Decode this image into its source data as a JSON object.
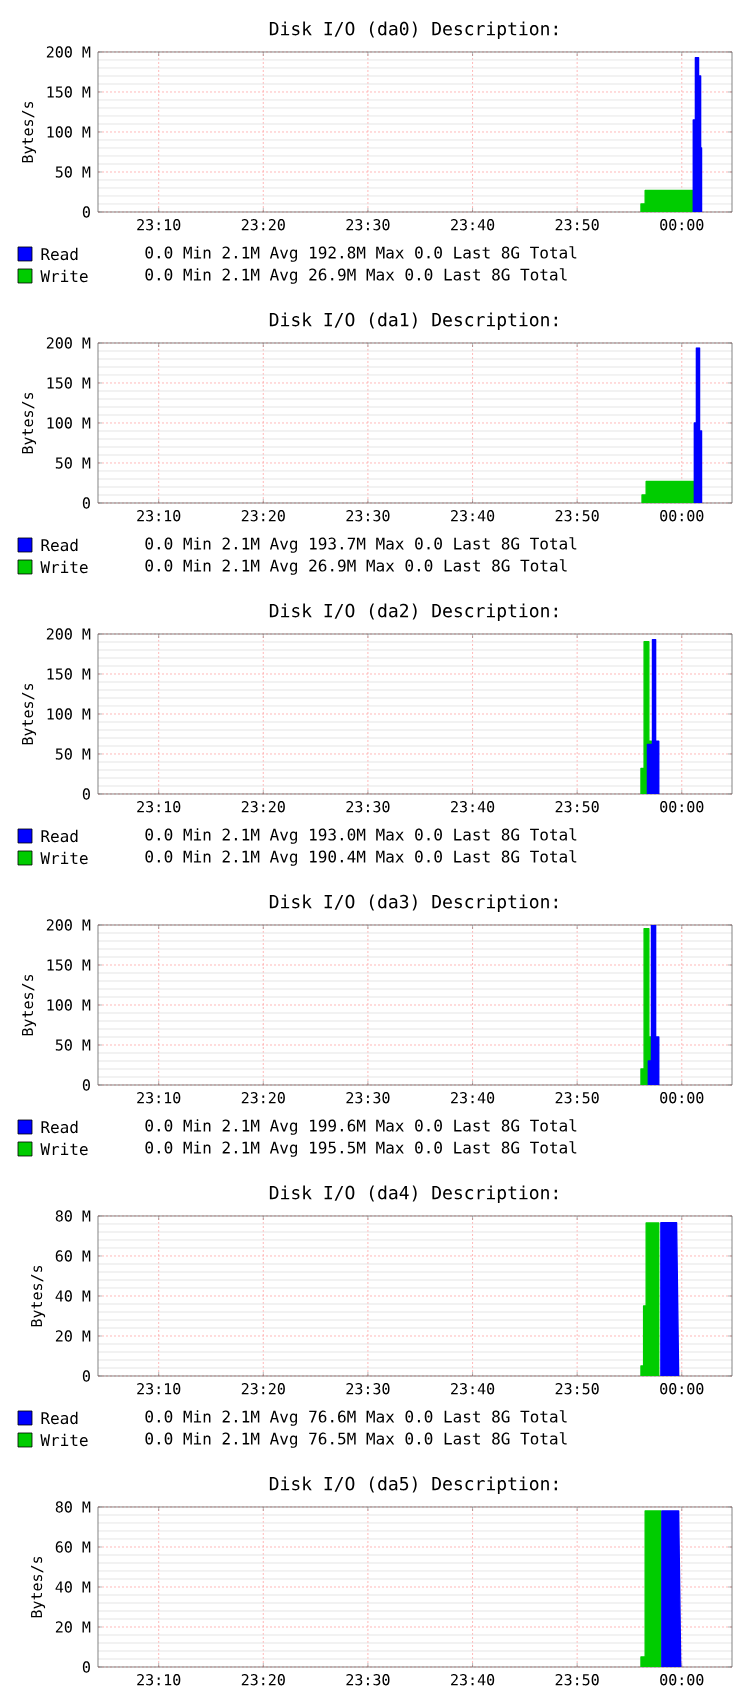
{
  "chart_data": [
    {
      "type": "area",
      "title": "Disk I/O (da0) Description:",
      "ylabel": "Bytes/s",
      "xlim": [
        23.07,
        24.08
      ],
      "ylim": [
        0,
        200
      ],
      "xticks": [
        {
          "value": 23.1667,
          "label": "23:10"
        },
        {
          "value": 23.3333,
          "label": "23:20"
        },
        {
          "value": 23.5,
          "label": "23:30"
        },
        {
          "value": 23.6667,
          "label": "23:40"
        },
        {
          "value": 23.8333,
          "label": "23:50"
        },
        {
          "value": 24.0,
          "label": "00:00"
        }
      ],
      "yticks": [
        0,
        {
          "value": 50,
          "label": "50 M"
        },
        {
          "value": 100,
          "label": "100 M"
        },
        {
          "value": 150,
          "label": "150 M"
        },
        {
          "value": 200,
          "label": "200 M"
        }
      ],
      "grid": true,
      "legend": "bottom",
      "annotations": [
        "0.0 Min 2.1M Avg 192.8M Max 0.0 Last 8G Total",
        "0.0 Min 2.1M Avg 26.9M Max 0.0 Last 8G Total"
      ],
      "series": [
        {
          "name": "Read",
          "color": "#0000ff",
          "x": [
            24.0183,
            24.0183,
            24.0217,
            24.0217,
            24.0267,
            24.0267,
            24.03,
            24.03,
            24.0317,
            24.0317
          ],
          "values": [
            0,
            115,
            115,
            192.8,
            192.8,
            170,
            170,
            80,
            80,
            0
          ]
        },
        {
          "name": "Write",
          "color": "#00cc00",
          "x": [
            23.935,
            23.935,
            23.9417,
            23.9417,
            24.0183,
            24.0183
          ],
          "values": [
            0,
            10,
            10,
            26.9,
            26.9,
            0
          ]
        }
      ]
    },
    {
      "type": "area",
      "title": "Disk I/O (da1) Description:",
      "ylabel": "Bytes/s",
      "xlim": [
        23.07,
        24.08
      ],
      "ylim": [
        0,
        200
      ],
      "xticks": [
        {
          "value": 23.1667,
          "label": "23:10"
        },
        {
          "value": 23.3333,
          "label": "23:20"
        },
        {
          "value": 23.5,
          "label": "23:30"
        },
        {
          "value": 23.6667,
          "label": "23:40"
        },
        {
          "value": 23.8333,
          "label": "23:50"
        },
        {
          "value": 24.0,
          "label": "00:00"
        }
      ],
      "yticks": [
        0,
        {
          "value": 50,
          "label": "50 M"
        },
        {
          "value": 100,
          "label": "100 M"
        },
        {
          "value": 150,
          "label": "150 M"
        },
        {
          "value": 200,
          "label": "200 M"
        }
      ],
      "grid": true,
      "legend": "bottom",
      "annotations": [
        "0.0 Min 2.1M Avg 193.7M Max 0.0 Last 8G Total",
        "0.0 Min 2.1M Avg 26.9M Max 0.0 Last 8G Total"
      ],
      "series": [
        {
          "name": "Read",
          "color": "#0000ff",
          "x": [
            24.02,
            24.02,
            24.0233,
            24.0233,
            24.0283,
            24.0283,
            24.0317,
            24.0317
          ],
          "values": [
            0,
            100,
            100,
            193.7,
            193.7,
            90,
            90,
            0
          ]
        },
        {
          "name": "Write",
          "color": "#00cc00",
          "x": [
            23.9367,
            23.9367,
            23.9433,
            23.9433,
            24.02,
            24.02
          ],
          "values": [
            0,
            10,
            10,
            26.9,
            26.9,
            0
          ]
        }
      ]
    },
    {
      "type": "area",
      "title": "Disk I/O (da2) Description:",
      "ylabel": "Bytes/s",
      "xlim": [
        23.07,
        24.08
      ],
      "ylim": [
        0,
        200
      ],
      "xticks": [
        {
          "value": 23.1667,
          "label": "23:10"
        },
        {
          "value": 23.3333,
          "label": "23:20"
        },
        {
          "value": 23.5,
          "label": "23:30"
        },
        {
          "value": 23.6667,
          "label": "23:40"
        },
        {
          "value": 23.8333,
          "label": "23:50"
        },
        {
          "value": 24.0,
          "label": "00:00"
        }
      ],
      "yticks": [
        0,
        {
          "value": 50,
          "label": "50 M"
        },
        {
          "value": 100,
          "label": "100 M"
        },
        {
          "value": 150,
          "label": "150 M"
        },
        {
          "value": 200,
          "label": "200 M"
        }
      ],
      "grid": true,
      "legend": "bottom",
      "annotations": [
        "0.0 Min 2.1M Avg 193.0M Max 0.0 Last 8G Total",
        "0.0 Min 2.1M Avg 190.4M Max 0.0 Last 8G Total"
      ],
      "series": [
        {
          "name": "Read",
          "color": "#0000ff",
          "x": [
            23.945,
            23.945,
            23.9533,
            23.9533,
            23.9583,
            23.9583,
            23.9633,
            23.9633
          ],
          "values": [
            0,
            62,
            62,
            193.0,
            193.0,
            66,
            66,
            0
          ]
        },
        {
          "name": "Write",
          "color": "#00cc00",
          "x": [
            23.935,
            23.935,
            23.94,
            23.94,
            23.9475,
            23.9475,
            23.9517,
            23.9517
          ],
          "values": [
            0,
            32,
            32,
            190.4,
            190.4,
            66,
            66,
            0
          ]
        }
      ]
    },
    {
      "type": "area",
      "title": "Disk I/O (da3) Description:",
      "ylabel": "Bytes/s",
      "xlim": [
        23.07,
        24.08
      ],
      "ylim": [
        0,
        200
      ],
      "xticks": [
        {
          "value": 23.1667,
          "label": "23:10"
        },
        {
          "value": 23.3333,
          "label": "23:20"
        },
        {
          "value": 23.5,
          "label": "23:30"
        },
        {
          "value": 23.6667,
          "label": "23:40"
        },
        {
          "value": 23.8333,
          "label": "23:50"
        },
        {
          "value": 24.0,
          "label": "00:00"
        }
      ],
      "yticks": [
        0,
        {
          "value": 50,
          "label": "50 M"
        },
        {
          "value": 100,
          "label": "100 M"
        },
        {
          "value": 150,
          "label": "150 M"
        },
        {
          "value": 200,
          "label": "200 M"
        }
      ],
      "grid": true,
      "legend": "bottom",
      "annotations": [
        "0.0 Min 2.1M Avg 199.6M Max 0.0 Last 8G Total",
        "0.0 Min 2.1M Avg 195.5M Max 0.0 Last 8G Total"
      ],
      "series": [
        {
          "name": "Read",
          "color": "#0000ff",
          "x": [
            23.9467,
            23.9467,
            23.9517,
            23.9517,
            23.9583,
            23.9583,
            23.9633,
            23.9633
          ],
          "values": [
            0,
            30,
            30,
            199.6,
            199.6,
            60,
            60,
            0
          ]
        },
        {
          "name": "Write",
          "color": "#00cc00",
          "x": [
            23.935,
            23.935,
            23.94,
            23.94,
            23.9475,
            23.9475,
            23.9517,
            23.9517
          ],
          "values": [
            0,
            20,
            20,
            195.5,
            195.5,
            60,
            60,
            0
          ]
        }
      ]
    },
    {
      "type": "area",
      "title": "Disk I/O (da4) Description:",
      "ylabel": "Bytes/s",
      "xlim": [
        23.07,
        24.08
      ],
      "ylim": [
        0,
        80
      ],
      "xticks": [
        {
          "value": 23.1667,
          "label": "23:10"
        },
        {
          "value": 23.3333,
          "label": "23:20"
        },
        {
          "value": 23.5,
          "label": "23:30"
        },
        {
          "value": 23.6667,
          "label": "23:40"
        },
        {
          "value": 23.8333,
          "label": "23:50"
        },
        {
          "value": 24.0,
          "label": "00:00"
        }
      ],
      "yticks": [
        0,
        {
          "value": 20,
          "label": "20 M"
        },
        {
          "value": 40,
          "label": "40 M"
        },
        {
          "value": 60,
          "label": "60 M"
        },
        {
          "value": 80,
          "label": "80 M"
        }
      ],
      "grid": true,
      "legend": "bottom",
      "annotations": [
        "0.0 Min 2.1M Avg 76.6M Max 0.0 Last 8G Total",
        "0.0 Min 2.1M Avg 76.5M Max 0.0 Last 8G Total"
      ],
      "series": [
        {
          "name": "Read",
          "color": "#0000ff",
          "x": [
            23.9667,
            23.9667,
            23.9917,
            23.995
          ],
          "values": [
            0,
            76.6,
            76.6,
            0
          ]
        },
        {
          "name": "Write",
          "color": "#00cc00",
          "x": [
            23.935,
            23.935,
            23.9392,
            23.9392,
            23.9433,
            23.9433,
            23.9633,
            23.9633
          ],
          "values": [
            0,
            5,
            5,
            35,
            35,
            76.5,
            76.5,
            0
          ]
        }
      ]
    },
    {
      "type": "area",
      "title": "Disk I/O (da5) Description:",
      "ylabel": "Bytes/s",
      "xlim": [
        23.07,
        24.08
      ],
      "ylim": [
        0,
        80
      ],
      "xticks": [
        {
          "value": 23.1667,
          "label": "23:10"
        },
        {
          "value": 23.3333,
          "label": "23:20"
        },
        {
          "value": 23.5,
          "label": "23:30"
        },
        {
          "value": 23.6667,
          "label": "23:40"
        },
        {
          "value": 23.8333,
          "label": "23:50"
        },
        {
          "value": 24.0,
          "label": "00:00"
        }
      ],
      "yticks": [
        0,
        {
          "value": 20,
          "label": "20 M"
        },
        {
          "value": 40,
          "label": "40 M"
        },
        {
          "value": 60,
          "label": "60 M"
        },
        {
          "value": 80,
          "label": "80 M"
        }
      ],
      "grid": true,
      "series": [
        {
          "color": "#0000ff",
          "x": [
            23.9683,
            23.9683,
            23.995,
            23.9983
          ],
          "values": [
            0,
            78,
            78,
            0
          ]
        },
        {
          "color": "#00cc00",
          "x": [
            23.935,
            23.935,
            23.9417,
            23.9417,
            23.9667,
            23.9667
          ],
          "values": [
            0,
            5,
            5,
            78,
            78,
            0
          ]
        }
      ]
    }
  ]
}
